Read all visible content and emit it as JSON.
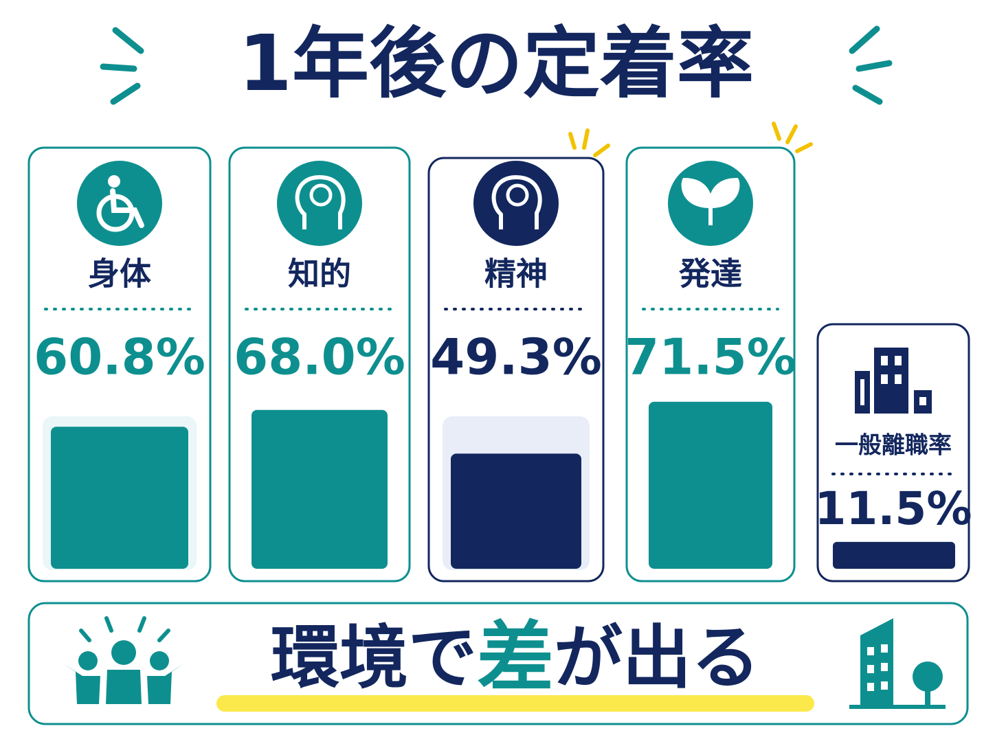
{
  "chart_data": {
    "type": "bar",
    "title": "1年後の定着率",
    "categories": [
      "身体",
      "知的",
      "精神",
      "発達"
    ],
    "values": [
      60.8,
      68.0,
      49.3,
      71.5
    ],
    "value_labels": [
      "60.8%",
      "68.0%",
      "49.3%",
      "71.5%"
    ],
    "colors": [
      "#0e8f8f",
      "#0e8f8f",
      "#13275e",
      "#0e8f8f"
    ]
  },
  "comparison": {
    "label": "一般離職率",
    "value": 11.5,
    "value_label": "11.5%",
    "color": "#13275e"
  },
  "footer": {
    "parts": [
      "環境で",
      "差",
      "が出る"
    ]
  }
}
